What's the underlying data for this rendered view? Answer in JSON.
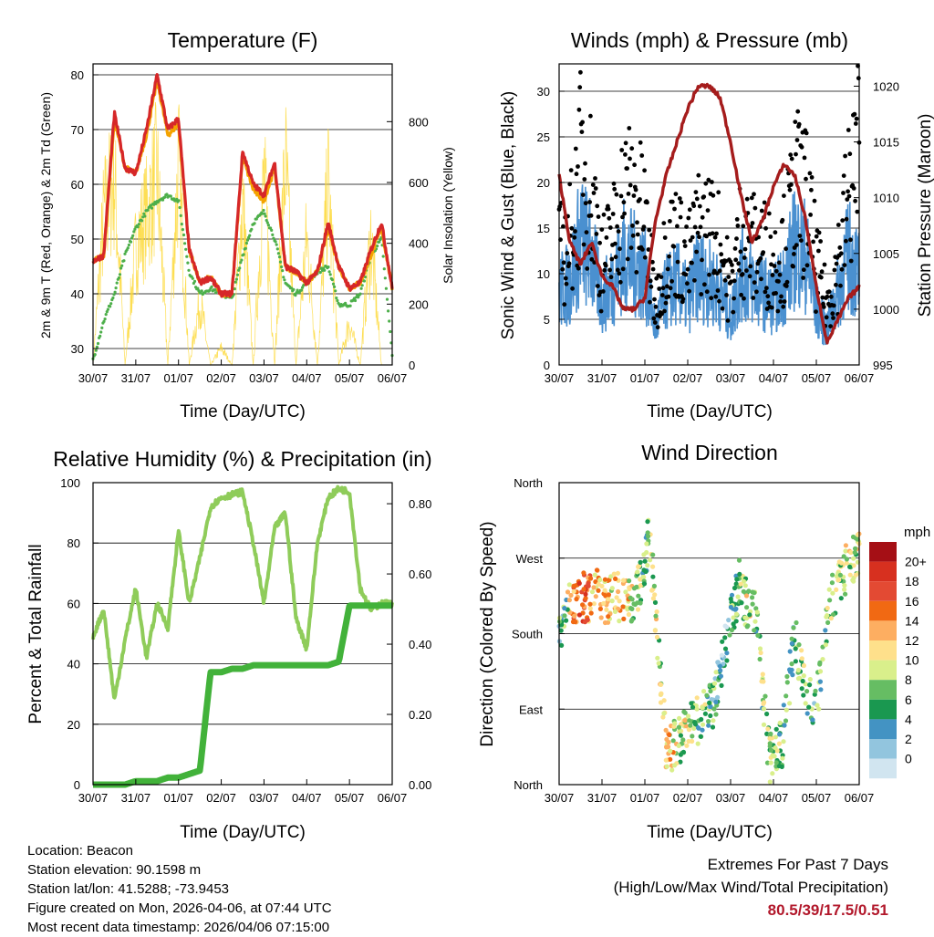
{
  "temperature": {
    "title": "Temperature (F)",
    "ylabel_left": "2m & 9m T (Red, Orange) & 2m Td (Green)",
    "ylabel_right": "Solar Insolation (Yellow)",
    "xlabel": "Time (Day/UTC)",
    "x_ticks": [
      "30/07",
      "31/07",
      "01/07",
      "02/07",
      "03/07",
      "04/07",
      "05/07",
      "06/07"
    ],
    "y_left_ticks": [
      "30",
      "40",
      "50",
      "60",
      "70",
      "80"
    ],
    "y_right_ticks": [
      "0",
      "200",
      "400",
      "600",
      "800"
    ]
  },
  "winds": {
    "title": "Winds (mph) & Pressure (mb)",
    "ylabel_left": "Sonic Wind & Gust (Blue, Black)",
    "ylabel_right": "Station Pressure (Maroon)",
    "xlabel": "Time (Day/UTC)",
    "x_ticks": [
      "30/07",
      "31/07",
      "01/07",
      "02/07",
      "03/07",
      "04/07",
      "05/07",
      "06/07"
    ],
    "y_left_ticks": [
      "0",
      "5",
      "10",
      "15",
      "20",
      "25",
      "30"
    ],
    "y_right_ticks": [
      "995",
      "1000",
      "1005",
      "1010",
      "1015",
      "1020"
    ]
  },
  "humidity": {
    "title": "Relative Humidity (%) & Precipitation (in)",
    "ylabel_left": "Percent & Total Rainfall",
    "xlabel": "Time (Day/UTC)",
    "x_ticks": [
      "30/07",
      "31/07",
      "01/07",
      "02/07",
      "03/07",
      "04/07",
      "05/07",
      "06/07"
    ],
    "y_left_ticks": [
      "0",
      "20",
      "40",
      "60",
      "80",
      "100"
    ],
    "y_right_ticks": [
      "0.00",
      "0.20",
      "0.40",
      "0.60",
      "0.80"
    ]
  },
  "direction": {
    "title": "Wind Direction",
    "ylabel_left": "Direction (Colored By Speed)",
    "xlabel": "Time (Day/UTC)",
    "x_ticks": [
      "30/07",
      "31/07",
      "01/07",
      "02/07",
      "03/07",
      "04/07",
      "05/07",
      "06/07"
    ],
    "y_ticks": [
      "North",
      "East",
      "South",
      "West",
      "North"
    ],
    "legend_title": "mph",
    "legend_labels": [
      "20+",
      "18",
      "16",
      "14",
      "12",
      "10",
      "8",
      "6",
      "4",
      "2",
      "0"
    ],
    "legend_colors": [
      "#a50f15",
      "#d7301f",
      "#e34a33",
      "#f16913",
      "#fdae61",
      "#fee08b",
      "#d9ef8b",
      "#66bd63",
      "#1a9850",
      "#4393c3",
      "#92c5de",
      "#d1e5f0"
    ]
  },
  "footer": {
    "location": "Location: Beacon",
    "elevation": "Station elevation: 90.1598 m",
    "latlon": "Station lat/lon: 41.5288; -73.9453",
    "created": "Figure created on Mon, 2026-04-06, at 07:44 UTC",
    "recent": "Most recent data timestamp: 2026/04/06 07:15:00",
    "extremes_title": "Extremes For Past 7 Days",
    "extremes_sub": "(High/Low/Max Wind/Total Precipitation)",
    "extremes_values": "80.5/39/17.5/0.51"
  },
  "chart_data": [
    {
      "type": "line",
      "title": "Temperature (F)",
      "x": [
        0,
        0.25,
        0.5,
        0.75,
        1,
        1.25,
        1.5,
        1.75,
        2,
        2.25,
        2.5,
        2.75,
        3,
        3.25,
        3.5,
        3.75,
        4,
        4.25,
        4.5,
        4.75,
        5,
        5.25,
        5.5,
        5.75,
        6,
        6.25,
        6.5,
        6.75,
        7
      ],
      "series": [
        {
          "name": "2m T",
          "values": [
            46,
            47,
            73,
            63,
            62,
            70,
            80,
            70,
            72,
            48,
            42,
            43,
            40,
            40,
            66,
            60,
            58,
            64,
            45,
            44,
            42,
            44,
            53,
            45,
            41,
            42,
            48,
            53,
            41
          ]
        },
        {
          "name": "9m T",
          "values": [
            46,
            47,
            72,
            63,
            62,
            69,
            79,
            69,
            71,
            48,
            42,
            43,
            40,
            40,
            65,
            59,
            57,
            63,
            45,
            44,
            42,
            44,
            52,
            45,
            41,
            42,
            47,
            52,
            41
          ]
        },
        {
          "name": "2m Td",
          "values": [
            28,
            35,
            40,
            47,
            52,
            55,
            57,
            58,
            57,
            44,
            40,
            41,
            40,
            39,
            47,
            53,
            55,
            50,
            42,
            40,
            42,
            44,
            45,
            38,
            38,
            40,
            47,
            50,
            29
          ]
        },
        {
          "name": "Solar Insolation",
          "values": [
            0,
            700,
            880,
            0,
            550,
            700,
            900,
            0,
            940,
            0,
            300,
            0,
            80,
            0,
            750,
            0,
            870,
            0,
            950,
            0,
            600,
            0,
            850,
            0,
            200,
            0,
            600,
            0,
            0
          ]
        }
      ],
      "xlabel": "Time (Day/UTC)",
      "ylim": [
        27,
        82
      ],
      "y2lim": [
        0,
        990
      ]
    },
    {
      "type": "scatter",
      "title": "Winds (mph) & Pressure (mb)",
      "x": [
        0,
        0.25,
        0.5,
        0.75,
        1,
        1.25,
        1.5,
        1.75,
        2,
        2.25,
        2.5,
        2.75,
        3,
        3.25,
        3.5,
        3.75,
        4,
        4.25,
        4.5,
        4.75,
        5,
        5.25,
        5.5,
        5.75,
        6,
        6.25,
        6.5,
        6.75,
        7
      ],
      "series": [
        {
          "name": "Sonic Wind",
          "values": [
            8,
            9,
            14,
            12,
            7,
            9,
            12,
            11,
            10,
            4,
            8,
            9,
            7,
            10,
            9,
            8,
            5,
            10,
            9,
            8,
            7,
            9,
            13,
            12,
            6,
            4,
            8,
            12,
            10
          ]
        },
        {
          "name": "Gust",
          "values": [
            13,
            15,
            24,
            21,
            12,
            15,
            20,
            20,
            17,
            7,
            14,
            15,
            12,
            16,
            16,
            14,
            9,
            16,
            14,
            14,
            12,
            14,
            21,
            20,
            12,
            7,
            12,
            20,
            26
          ]
        },
        {
          "name": "Station Pressure",
          "values": [
            1012,
            1006,
            1004,
            1006,
            1003,
            1002,
            1000,
            1000,
            1001,
            1008,
            1012,
            1015,
            1018,
            1020,
            1020,
            1019,
            1015,
            1010,
            1006,
            1008,
            1011,
            1013,
            1012,
            1008,
            1002,
            997,
            999,
            1001,
            1002
          ]
        }
      ],
      "xlabel": "Time (Day/UTC)",
      "ylim": [
        0,
        33
      ],
      "y2lim": [
        995,
        1022
      ]
    },
    {
      "type": "line",
      "title": "Relative Humidity (%) & Precipitation (in)",
      "x": [
        0,
        0.25,
        0.5,
        0.75,
        1,
        1.25,
        1.5,
        1.75,
        2,
        2.25,
        2.5,
        2.75,
        3,
        3.25,
        3.5,
        3.75,
        4,
        4.25,
        4.5,
        4.75,
        5,
        5.25,
        5.5,
        5.75,
        6,
        6.25,
        6.5,
        6.75,
        7
      ],
      "series": [
        {
          "name": "Relative Humidity",
          "values": [
            49,
            58,
            28,
            48,
            65,
            42,
            60,
            52,
            84,
            60,
            75,
            92,
            95,
            96,
            97,
            80,
            60,
            85,
            90,
            55,
            45,
            80,
            95,
            98,
            97,
            65,
            58,
            60,
            60
          ]
        },
        {
          "name": "Total Rainfall",
          "values": [
            0,
            0,
            0,
            0,
            0.01,
            0.01,
            0.01,
            0.02,
            0.02,
            0.03,
            0.04,
            0.32,
            0.32,
            0.33,
            0.33,
            0.34,
            0.34,
            0.34,
            0.34,
            0.34,
            0.34,
            0.34,
            0.34,
            0.35,
            0.51,
            0.51,
            0.51,
            0.51,
            0.51
          ]
        }
      ],
      "xlabel": "Time (Day/UTC)",
      "ylim": [
        0,
        100
      ],
      "y2lim": [
        0,
        0.86
      ]
    },
    {
      "type": "scatter",
      "title": "Wind Direction",
      "x": [
        0.1,
        0.3,
        0.5,
        0.7,
        0.9,
        1.1,
        1.3,
        1.5,
        1.7,
        1.9,
        2.1,
        2.5,
        2.9,
        3.3,
        3.6,
        3.9,
        4.2,
        4.4,
        4.6,
        4.9,
        5.2,
        5.5,
        5.7,
        6.0,
        6.3,
        6.6,
        6.9
      ],
      "series": [
        {
          "name": "Direction (deg)",
          "values": [
            195,
            215,
            225,
            220,
            230,
            215,
            225,
            220,
            220,
            240,
            300,
            40,
            60,
            80,
            95,
            170,
            240,
            210,
            200,
            30,
            50,
            180,
            120,
            90,
            220,
            250,
            275
          ]
        },
        {
          "name": "Speed (mph)",
          "values": [
            6,
            14,
            18,
            16,
            12,
            14,
            12,
            13,
            10,
            8,
            8,
            12,
            10,
            8,
            6,
            4,
            8,
            10,
            8,
            9,
            8,
            6,
            8,
            6,
            8,
            10,
            10
          ]
        }
      ],
      "xlabel": "Time (Day/UTC)",
      "ylim": [
        0,
        360
      ]
    }
  ]
}
